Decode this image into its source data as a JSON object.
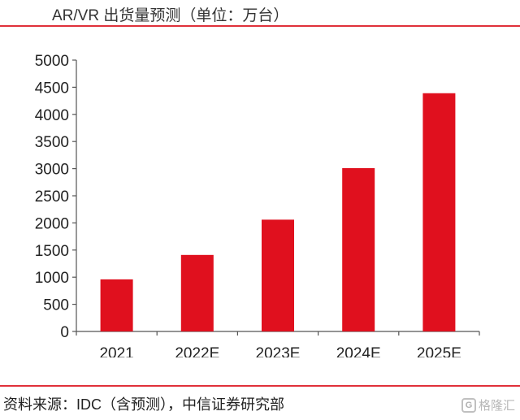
{
  "chart_data": {
    "type": "bar",
    "title": "AR/VR 出货量预测（单位：万台）",
    "categories": [
      "2021",
      "2022E",
      "2023E",
      "2024E",
      "2025E"
    ],
    "values": [
      960,
      1410,
      2060,
      3010,
      4390
    ],
    "yticks": [
      0,
      500,
      1000,
      1500,
      2000,
      2500,
      3000,
      3500,
      4000,
      4500,
      5000
    ],
    "ylim": [
      0,
      5000
    ],
    "xlabel": "",
    "ylabel": "",
    "grid": false,
    "legend": "none",
    "bar_color": "#e0101e"
  },
  "source": "资料来源：IDC（含预测），中信证券研究部",
  "watermark": {
    "icon": "gelonghui-logo-icon",
    "text": "格隆汇"
  },
  "colors": {
    "accent_rule": "#e0303a",
    "bar": "#e0101e"
  }
}
